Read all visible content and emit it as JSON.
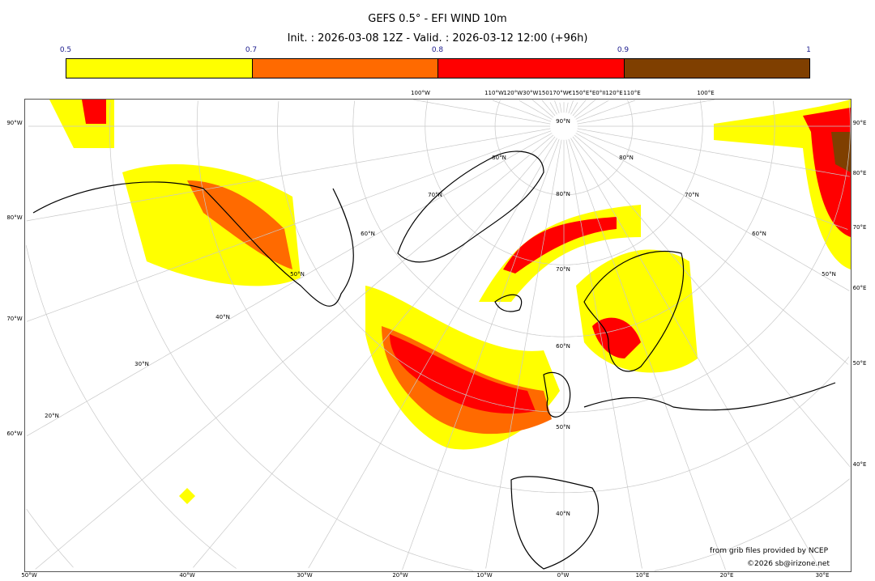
{
  "header": {
    "title": "GEFS 0.5° - EFI WIND 10m",
    "subtitle": "Init. : 2026-03-08 12Z - Valid. : 2026-03-12 12:00 (+96h)"
  },
  "colorbar": {
    "ticks": [
      "0.5",
      "0.7",
      "0.8",
      "0.9",
      "1"
    ],
    "colors": [
      "#ffff00",
      "#ff6a00",
      "#ff0000",
      "#7f3f00"
    ]
  },
  "axes": {
    "left": [
      "90°W",
      "80°W",
      "70°W",
      "60°W"
    ],
    "bottom": [
      "50°W",
      "40°W",
      "30°W",
      "20°W",
      "10°W",
      "0°W",
      "10°E",
      "20°E",
      "30°E"
    ],
    "right": [
      "90°E",
      "80°E",
      "70°E",
      "60°E",
      "50°E",
      "40°E"
    ],
    "top": [
      "100°W",
      "110°W",
      "120°W30°W150170°W€150°E°E0°II120°E",
      "110°E",
      "100°E"
    ],
    "lat_center": [
      "90°N",
      "80°N",
      "70°N",
      "60°N",
      "50°N",
      "40°N"
    ],
    "lat_left": [
      "80°N",
      "70°N",
      "60°N",
      "50°N",
      "40°N",
      "30°N",
      "20°N"
    ],
    "lat_right": [
      "80°N",
      "70°N",
      "60°N",
      "50°N"
    ]
  },
  "credits": {
    "source": "from grib files provided by NCEP",
    "copyright": "©2026 sb@irizone.net"
  }
}
